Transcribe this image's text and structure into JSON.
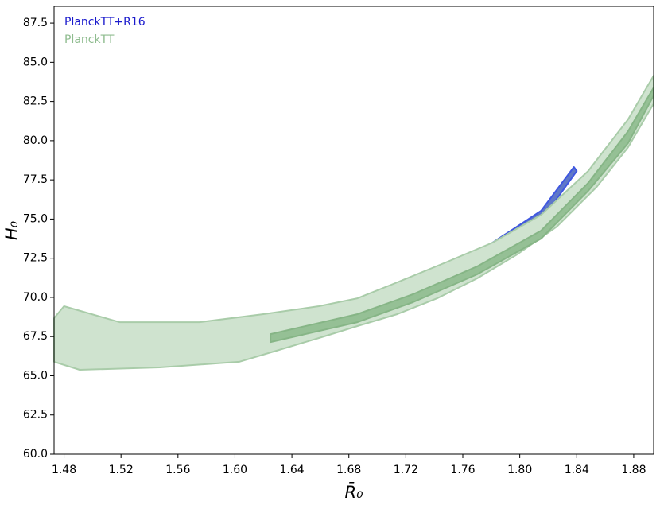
{
  "chart_data": {
    "type": "contour",
    "x_label": "R̄₀",
    "y_label": "H₀",
    "xlim": [
      1.473,
      1.894
    ],
    "ylim": [
      60,
      88.57
    ],
    "xticks": [
      1.48,
      1.52,
      1.56,
      {
        "value": 1.6,
        "label": "1.60"
      },
      1.64,
      1.68,
      1.72,
      1.76,
      {
        "value": 1.8,
        "label": "1.80"
      },
      1.84,
      1.88
    ],
    "yticks": [
      {
        "value": 60,
        "label": "60.0"
      },
      62.5,
      {
        "value": 65,
        "label": "65.0"
      },
      67.5,
      {
        "value": 70,
        "label": "70.0"
      },
      72.5,
      {
        "value": 75,
        "label": "75.0"
      },
      77.5,
      {
        "value": 80,
        "label": "80.0"
      },
      82.5,
      {
        "value": 85,
        "label": "85.0"
      },
      87.5
    ],
    "legend": "upper left",
    "series": [
      {
        "name": "PlanckTT",
        "color": "#8fbc8f",
        "levels": [
          {
            "fill": "#cfe3cf",
            "edge": "#a9cca9",
            "x": [
              1.473,
              1.48,
              1.519,
              1.575,
              1.62,
              1.659,
              1.686,
              1.714,
              1.748,
              1.781,
              1.815,
              1.848,
              1.876,
              1.894,
              1.894,
              1.876,
              1.854,
              1.826,
              1.798,
              1.77,
              1.742,
              1.714,
              1.686,
              1.659,
              1.631,
              1.603,
              1.547,
              1.491,
              1.473
            ],
            "y": [
              68.68,
              69.44,
              68.42,
              68.42,
              68.93,
              69.44,
              69.94,
              70.96,
              72.23,
              73.5,
              75.27,
              78.06,
              81.36,
              84.15,
              82.37,
              79.58,
              77.05,
              74.51,
              72.73,
              71.21,
              69.94,
              68.93,
              68.17,
              67.41,
              66.65,
              65.89,
              65.53,
              65.38,
              65.89
            ]
          },
          {
            "fill": "#95c095",
            "edge": "#86b586",
            "x": [
              1.625,
              1.686,
              1.725,
              1.77,
              1.815,
              1.848,
              1.876,
              1.894,
              1.894,
              1.876,
              1.848,
              1.815,
              1.77,
              1.725,
              1.686,
              1.625
            ],
            "y": [
              67.66,
              68.93,
              70.2,
              71.97,
              74.26,
              77.3,
              80.6,
              83.39,
              82.88,
              79.84,
              76.79,
              73.75,
              71.47,
              69.69,
              68.42,
              67.15
            ]
          }
        ]
      },
      {
        "name": "PlanckTT+R16",
        "color": "#1a1acc",
        "levels": [
          {
            "fill": "#5f78c8",
            "edge": "#3f57e0",
            "x": [
              1.72,
              1.748,
              1.781,
              1.815,
              1.838,
              1.84,
              1.82,
              1.792,
              1.765,
              1.737,
              1.72
            ],
            "y": [
              70.45,
              71.97,
              73.5,
              75.53,
              78.32,
              78.06,
              75.53,
              73.5,
              71.72,
              70.2,
              69.94
            ]
          },
          {
            "fill": "#0a2a9a",
            "edge": "#0a2a9a",
            "x": [
              1.766,
              1.792,
              1.826,
              1.842,
              1.837,
              1.815,
              1.792,
              1.77
            ],
            "y": [
              71.82,
              73.5,
              75.68,
              76.95,
              76.54,
              74.51,
              72.84,
              71.72
            ]
          }
        ]
      }
    ]
  }
}
